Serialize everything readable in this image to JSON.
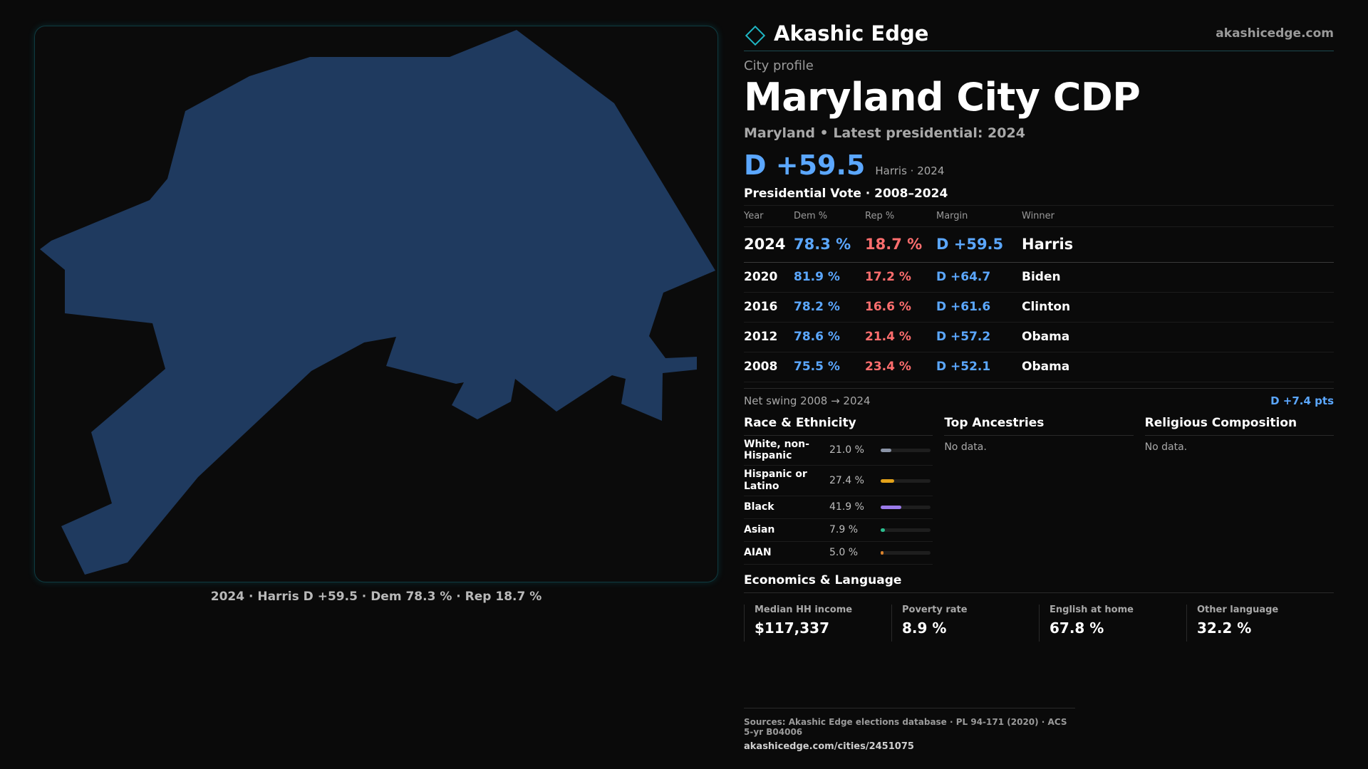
{
  "colors": {
    "dem": "#5ba7ff",
    "rep": "#ff6e6e",
    "map_fill": "#1f3a5f",
    "accent": "#1fb6c4"
  },
  "header": {
    "brand_icon": "diamond-icon",
    "brand": "Akashic Edge",
    "site": "akashicedge.com"
  },
  "profile": {
    "kicker": "City profile",
    "title": "Maryland City CDP",
    "subtitle": "Maryland • Latest presidential: 2024",
    "headline_margin": "D +59.5",
    "headline_meta": "Harris · 2024"
  },
  "map": {
    "caption": "2024 · Harris D +59.5 · Dem 78.3 % · Rep 18.7 %"
  },
  "votes": {
    "section": "Presidential Vote · 2008–2024",
    "headers": [
      "Year",
      "Dem %",
      "Rep %",
      "Margin",
      "Winner"
    ],
    "rows": [
      {
        "year": "2024",
        "dem": "78.3 %",
        "rep": "18.7 %",
        "margin": "D +59.5",
        "winner": "Harris"
      },
      {
        "year": "2020",
        "dem": "81.9 %",
        "rep": "17.2 %",
        "margin": "D +64.7",
        "winner": "Biden"
      },
      {
        "year": "2016",
        "dem": "78.2 %",
        "rep": "16.6 %",
        "margin": "D +61.6",
        "winner": "Clinton"
      },
      {
        "year": "2012",
        "dem": "78.6 %",
        "rep": "21.4 %",
        "margin": "D +57.2",
        "winner": "Obama"
      },
      {
        "year": "2008",
        "dem": "75.5 %",
        "rep": "23.4 %",
        "margin": "D +52.1",
        "winner": "Obama"
      }
    ],
    "swing_label": "Net swing 2008 → 2024",
    "swing_value": "D +7.4 pts"
  },
  "race": {
    "title": "Race & Ethnicity",
    "rows": [
      {
        "name": "White, non-Hispanic",
        "pct": "21.0 %",
        "value": 21.0,
        "color": "#8a93a6"
      },
      {
        "name": "Hispanic or Latino",
        "pct": "27.4 %",
        "value": 27.4,
        "color": "#e3a21a"
      },
      {
        "name": "Black",
        "pct": "41.9 %",
        "value": 41.9,
        "color": "#9b7bea"
      },
      {
        "name": "Asian",
        "pct": "7.9 %",
        "value": 7.9,
        "color": "#2bbd8e"
      },
      {
        "name": "AIAN",
        "pct": "5.0 %",
        "value": 5.0,
        "color": "#d9822b"
      }
    ]
  },
  "ancestries": {
    "title": "Top Ancestries",
    "empty": "No data."
  },
  "religion": {
    "title": "Religious Composition",
    "empty": "No data."
  },
  "economics": {
    "title": "Economics & Language",
    "cells": [
      {
        "label": "Median HH income",
        "value": "$117,337"
      },
      {
        "label": "Poverty rate",
        "value": "8.9 %"
      },
      {
        "label": "English at home",
        "value": "67.8 %"
      },
      {
        "label": "Other language",
        "value": "32.2 %"
      }
    ]
  },
  "footer": {
    "sources": "Sources: Akashic Edge elections database · PL 94-171 (2020) · ACS 5-yr B04006",
    "url": "akashicedge.com/cities/2451075"
  }
}
